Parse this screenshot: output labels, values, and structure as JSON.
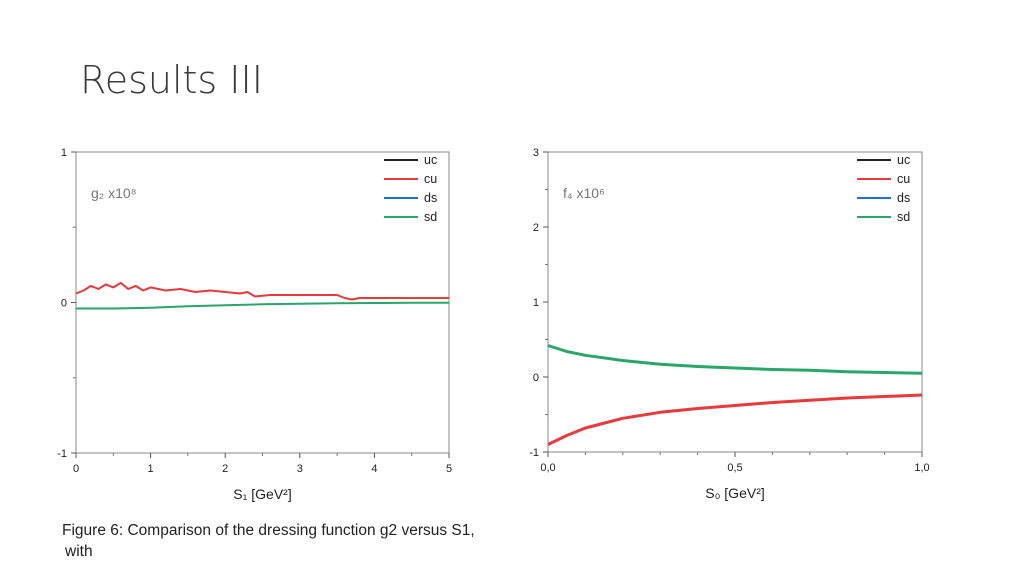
{
  "slide": {
    "title": "Results III",
    "caption_line1": "Figure 6: Comparison of the dressing function g2 versus S1,",
    "caption_line2": "with"
  },
  "colors": {
    "uc": "#222222",
    "cu": "#e8393c",
    "ds": "#1f6fe0",
    "sd": "#2aa66a"
  },
  "chart_data": [
    {
      "type": "line",
      "panel_label": "g₂ x10⁸",
      "xlabel": "S₁ [GeV²]",
      "ylabel": "",
      "xlim": [
        0,
        5
      ],
      "ylim": [
        -1,
        1
      ],
      "x_ticks": [
        "0",
        "1",
        "2",
        "3",
        "4",
        "5"
      ],
      "y_ticks": [
        "1",
        "0",
        "-1"
      ],
      "legend": [
        "uc",
        "cu",
        "ds",
        "sd"
      ],
      "legend_position": "top-right",
      "grid": false,
      "series": [
        {
          "name": "cu",
          "x": [
            0,
            0.1,
            0.2,
            0.3,
            0.4,
            0.5,
            0.6,
            0.7,
            0.8,
            0.9,
            1.0,
            1.2,
            1.4,
            1.6,
            1.8,
            2.0,
            2.2,
            2.3,
            2.4,
            2.6,
            2.8,
            3.0,
            3.2,
            3.4,
            3.5,
            3.6,
            3.7,
            3.8,
            4.0,
            4.2,
            4.5,
            4.8,
            5.0
          ],
          "y": [
            0.06,
            0.08,
            0.11,
            0.09,
            0.12,
            0.1,
            0.13,
            0.09,
            0.11,
            0.08,
            0.1,
            0.08,
            0.09,
            0.07,
            0.08,
            0.07,
            0.06,
            0.07,
            0.04,
            0.05,
            0.05,
            0.05,
            0.05,
            0.05,
            0.05,
            0.03,
            0.02,
            0.03,
            0.03,
            0.03,
            0.03,
            0.03,
            0.03
          ]
        },
        {
          "name": "sd",
          "x": [
            0,
            0.5,
            1.0,
            1.5,
            2.0,
            2.5,
            3.0,
            3.5,
            4.0,
            4.5,
            5.0
          ],
          "y": [
            -0.04,
            -0.04,
            -0.035,
            -0.025,
            -0.018,
            -0.012,
            -0.008,
            -0.005,
            -0.003,
            -0.002,
            -0.002
          ]
        }
      ]
    },
    {
      "type": "line",
      "panel_label": "f₄ x10⁶",
      "xlabel": "S₀ [GeV²]",
      "ylabel": "",
      "xlim": [
        0,
        1
      ],
      "ylim": [
        -1,
        3
      ],
      "x_ticks": [
        "0,0",
        "0,5",
        "1,0"
      ],
      "y_ticks": [
        "3",
        "2",
        "1",
        "0",
        "-1"
      ],
      "legend": [
        "uc",
        "cu",
        "ds",
        "sd"
      ],
      "legend_position": "top-right",
      "grid": false,
      "series": [
        {
          "name": "cu",
          "x": [
            0,
            0.05,
            0.1,
            0.2,
            0.3,
            0.4,
            0.5,
            0.6,
            0.7,
            0.8,
            0.9,
            1.0
          ],
          "y": [
            -0.9,
            -0.78,
            -0.68,
            -0.55,
            -0.47,
            -0.42,
            -0.38,
            -0.34,
            -0.31,
            -0.28,
            -0.26,
            -0.24
          ]
        },
        {
          "name": "sd",
          "x": [
            0,
            0.05,
            0.1,
            0.2,
            0.3,
            0.4,
            0.5,
            0.6,
            0.7,
            0.8,
            0.9,
            1.0
          ],
          "y": [
            0.42,
            0.34,
            0.29,
            0.22,
            0.17,
            0.14,
            0.12,
            0.1,
            0.09,
            0.07,
            0.06,
            0.05
          ]
        }
      ]
    }
  ]
}
